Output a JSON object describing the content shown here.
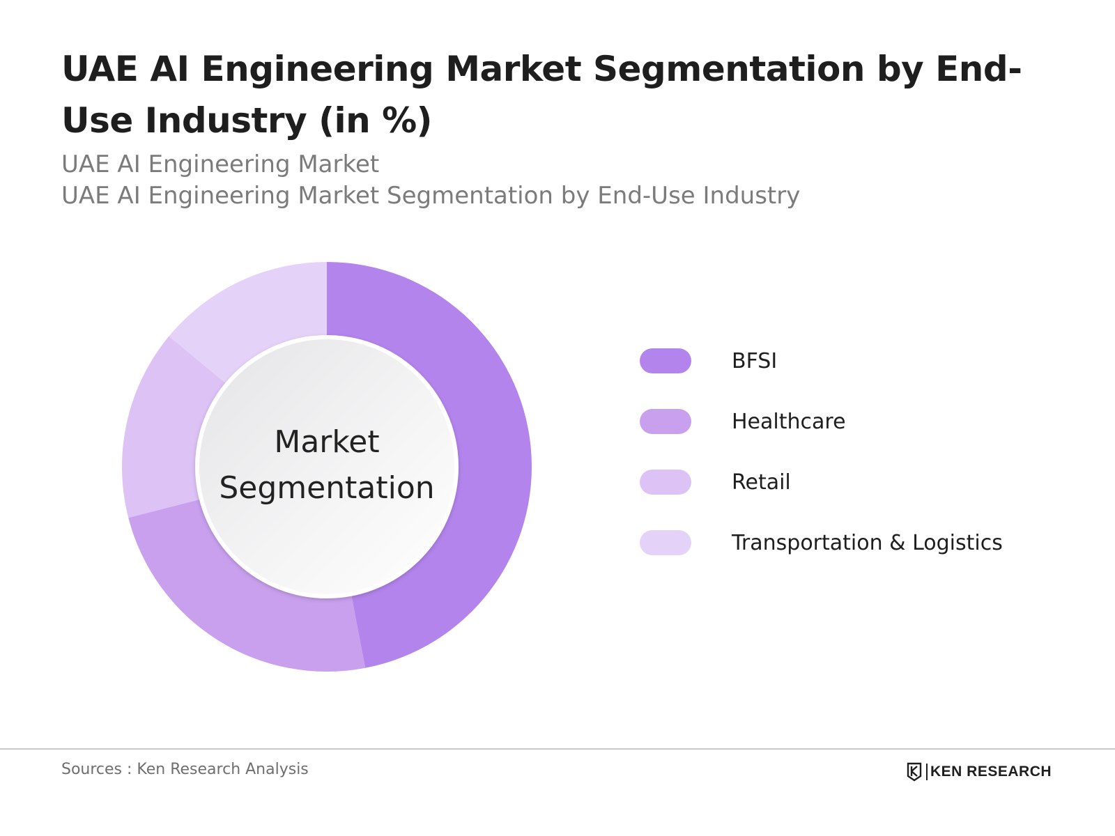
{
  "header": {
    "title": "UAE AI Engineering Market Segmentation by End-Use Industry (in %)",
    "subtitle_1": "UAE AI Engineering Market",
    "subtitle_2": "UAE AI Engineering Market Segmentation by End-Use Industry"
  },
  "chart_data": {
    "type": "pie",
    "variant": "donut",
    "title": "UAE AI Engineering Market Segmentation by End-Use Industry (in %)",
    "center_label_1": "Market",
    "center_label_2": "Segmentation",
    "categories": [
      "BFSI",
      "Healthcare",
      "Retail",
      "Transportation & Logistics"
    ],
    "values": [
      47,
      24,
      15,
      14
    ],
    "colors": [
      "#b384ec",
      "#c8a0ee",
      "#dcc2f5",
      "#e5d2f8"
    ],
    "legend_position": "right"
  },
  "footer": {
    "sources": "Sources : Ken Research Analysis",
    "brand": "KEN RESEARCH",
    "brand_logo": "ken-research-logo"
  }
}
